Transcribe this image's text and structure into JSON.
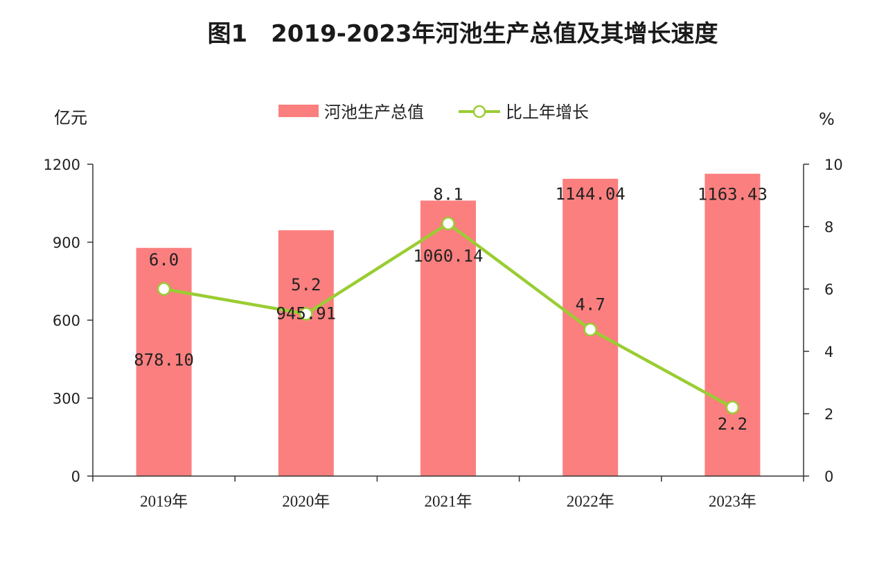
{
  "chart_data": {
    "type": "bar",
    "title": "图1　2019-2023年河池生产总值及其增长速度",
    "categories": [
      "2019年",
      "2020年",
      "2021年",
      "2022年",
      "2023年"
    ],
    "y_left": {
      "label": "亿元",
      "ylim": [
        0,
        1200
      ],
      "ticks": [
        0,
        300,
        600,
        900,
        1200
      ]
    },
    "y_right": {
      "label": "%",
      "ylim": [
        0,
        10
      ],
      "ticks": [
        0,
        2,
        4,
        6,
        8,
        10
      ]
    },
    "series": [
      {
        "name": "河池生产总值",
        "type": "bar",
        "axis": "left",
        "color": "#fb7f7f",
        "values": [
          878.1,
          945.91,
          1060.14,
          1144.04,
          1163.43
        ],
        "labels": [
          "878.10",
          "945.91",
          "1060.14",
          "1144.04",
          "1163.43"
        ]
      },
      {
        "name": "比上年增长",
        "type": "line",
        "axis": "right",
        "color": "#9acd32",
        "values": [
          6.0,
          5.2,
          8.1,
          4.7,
          2.2
        ],
        "labels": [
          "6.0",
          "5.2",
          "8.1",
          "4.7",
          "2.2"
        ]
      }
    ],
    "legend": {
      "placement": "top-center"
    },
    "grid": false
  }
}
